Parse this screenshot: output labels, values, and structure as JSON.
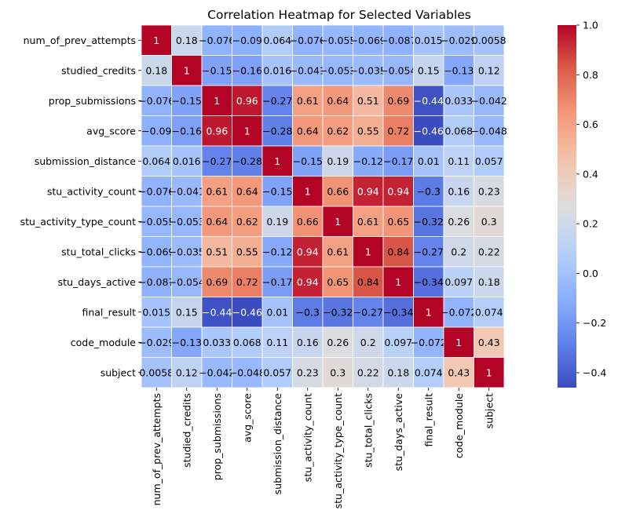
{
  "chart_data": {
    "type": "heatmap",
    "title": "Correlation Heatmap for Selected Variables",
    "colormap": "coolwarm",
    "grid": false,
    "legend": "colorbar-right",
    "variables": [
      "num_of_prev_attempts",
      "studied_credits",
      "prop_submissions",
      "avg_score",
      "submission_distance",
      "stu_activity_count",
      "stu_activity_type_count",
      "stu_total_clicks",
      "stu_days_active",
      "final_result",
      "code_module",
      "subject"
    ],
    "values": [
      [
        1,
        0.18,
        -0.076,
        -0.09,
        0.064,
        -0.076,
        -0.055,
        -0.069,
        -0.087,
        0.015,
        -0.029,
        0.0058
      ],
      [
        0.18,
        1,
        -0.15,
        -0.16,
        0.016,
        -0.041,
        -0.053,
        -0.035,
        -0.054,
        0.15,
        -0.13,
        0.12
      ],
      [
        -0.076,
        -0.15,
        1,
        0.96,
        -0.27,
        0.61,
        0.64,
        0.51,
        0.69,
        -0.44,
        0.033,
        -0.042
      ],
      [
        -0.09,
        -0.16,
        0.96,
        1,
        -0.28,
        0.64,
        0.62,
        0.55,
        0.72,
        -0.46,
        0.068,
        -0.048
      ],
      [
        0.064,
        0.016,
        -0.27,
        -0.28,
        1,
        -0.15,
        0.19,
        -0.12,
        -0.17,
        0.01,
        0.11,
        0.057
      ],
      [
        -0.076,
        -0.041,
        0.61,
        0.64,
        -0.15,
        1,
        0.66,
        0.94,
        0.94,
        -0.3,
        0.16,
        0.23
      ],
      [
        -0.055,
        -0.053,
        0.64,
        0.62,
        0.19,
        0.66,
        1,
        0.61,
        0.65,
        -0.32,
        0.26,
        0.3
      ],
      [
        -0.069,
        -0.035,
        0.51,
        0.55,
        -0.12,
        0.94,
        0.61,
        1,
        0.84,
        -0.27,
        0.2,
        0.22
      ],
      [
        -0.087,
        -0.054,
        0.69,
        0.72,
        -0.17,
        0.94,
        0.65,
        0.84,
        1,
        -0.34,
        0.097,
        0.18
      ],
      [
        0.015,
        0.15,
        -0.44,
        -0.46,
        0.01,
        -0.3,
        -0.32,
        -0.27,
        -0.34,
        1,
        -0.072,
        0.074
      ],
      [
        -0.029,
        -0.13,
        0.033,
        0.068,
        0.11,
        0.16,
        0.26,
        0.2,
        0.097,
        -0.072,
        1,
        0.43
      ],
      [
        0.0058,
        0.12,
        -0.042,
        -0.048,
        0.057,
        0.23,
        0.3,
        0.22,
        0.18,
        0.074,
        0.43,
        1
      ]
    ],
    "colorbar": {
      "vmin": -0.46,
      "vmax": 1,
      "ticks": [
        -0.4,
        -0.2,
        0.0,
        0.2,
        0.4,
        0.6,
        0.8,
        1.0
      ],
      "tick_labels": [
        "−0.4",
        "−0.2",
        "0.0",
        "0.2",
        "0.4",
        "0.6",
        "0.8",
        "1.0"
      ]
    }
  }
}
